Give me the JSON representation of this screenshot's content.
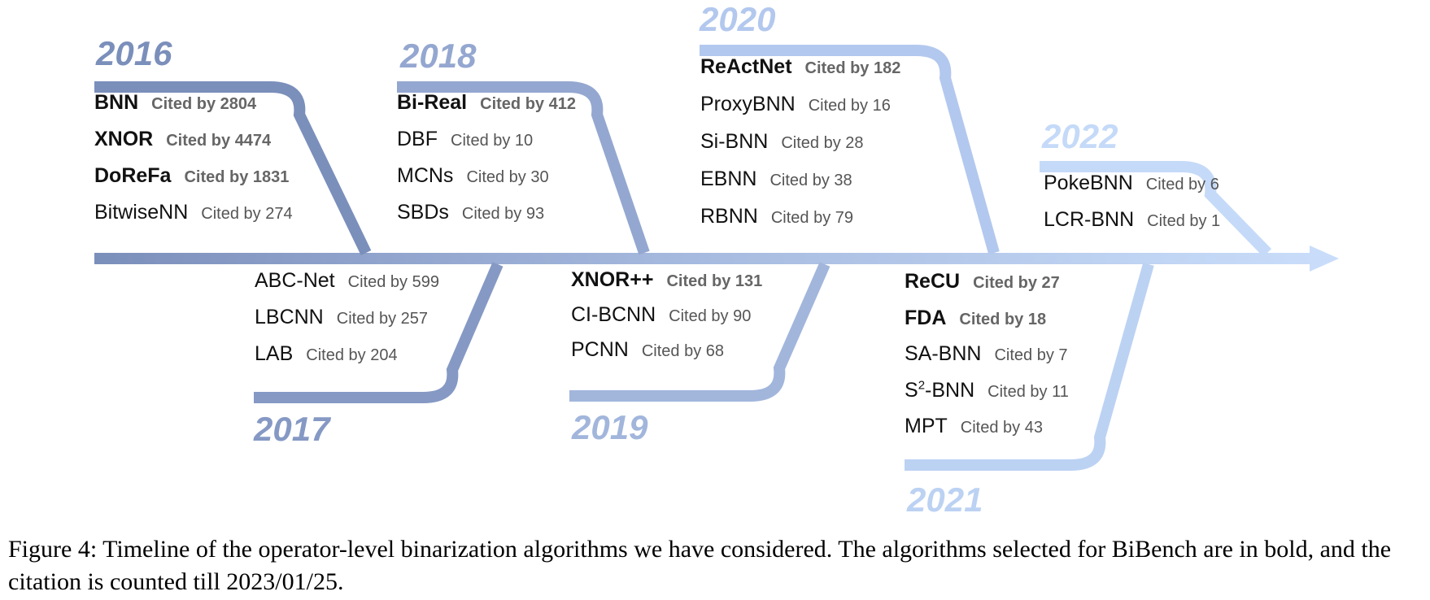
{
  "timeline": {
    "colors": {
      "y2016": "#7b8fbb",
      "y2017": "#8599c4",
      "y2018": "#94a7d0",
      "y2019": "#a2b6dc",
      "y2020": "#b3c8ee",
      "y2021": "#bcd2f3",
      "y2022": "#c5daf8",
      "text": "#111111",
      "cite": "#555555"
    },
    "years": [
      {
        "label": "2016",
        "entries": [
          {
            "name": "BNN",
            "cite": "Cited by 2804",
            "bold": true
          },
          {
            "name": "XNOR",
            "cite": "Cited by 4474",
            "bold": true
          },
          {
            "name": "DoReFa",
            "cite": "Cited by 1831",
            "bold": true
          },
          {
            "name": "BitwiseNN",
            "cite": "Cited by 274",
            "bold": false
          }
        ]
      },
      {
        "label": "2017",
        "entries": [
          {
            "name": "ABC-Net",
            "cite": "Cited by 599",
            "bold": false
          },
          {
            "name": "LBCNN",
            "cite": "Cited by 257",
            "bold": false
          },
          {
            "name": "LAB",
            "cite": "Cited by 204",
            "bold": false
          }
        ]
      },
      {
        "label": "2018",
        "entries": [
          {
            "name": "Bi-Real",
            "cite": "Cited by 412",
            "bold": true
          },
          {
            "name": "DBF",
            "cite": "Cited by 10",
            "bold": false
          },
          {
            "name": "MCNs",
            "cite": "Cited by 30",
            "bold": false
          },
          {
            "name": "SBDs",
            "cite": "Cited by 93",
            "bold": false
          }
        ]
      },
      {
        "label": "2019",
        "entries": [
          {
            "name": "XNOR++",
            "cite": "Cited by 131",
            "bold": true
          },
          {
            "name": "CI-BCNN",
            "cite": "Cited by 90",
            "bold": false
          },
          {
            "name": "PCNN",
            "cite": "Cited by 68",
            "bold": false
          }
        ]
      },
      {
        "label": "2020",
        "entries": [
          {
            "name": "ReActNet",
            "cite": "Cited by 182",
            "bold": true
          },
          {
            "name": "ProxyBNN",
            "cite": "Cited by 16",
            "bold": false
          },
          {
            "name": "Si-BNN",
            "cite": "Cited by 28",
            "bold": false
          },
          {
            "name": "EBNN",
            "cite": "Cited by 38",
            "bold": false
          },
          {
            "name": "RBNN",
            "cite": "Cited by 79",
            "bold": false
          }
        ]
      },
      {
        "label": "2021",
        "entries": [
          {
            "name": "ReCU",
            "cite": "Cited by 27",
            "bold": true
          },
          {
            "name": "FDA",
            "cite": "Cited by 18",
            "bold": true
          },
          {
            "name": "SA-BNN",
            "cite": "Cited by 7",
            "bold": false
          },
          {
            "name": "S",
            "sup": "2",
            "suffix": "-BNN",
            "cite": "Cited by 11",
            "bold": false
          },
          {
            "name": "MPT",
            "cite": "Cited by 43",
            "bold": false
          }
        ]
      },
      {
        "label": "2022",
        "entries": [
          {
            "name": "PokeBNN",
            "cite": "Cited by 6",
            "bold": false
          },
          {
            "name": "LCR-BNN",
            "cite": "Cited by 1",
            "bold": false
          }
        ]
      }
    ]
  },
  "caption": "Figure 4: Timeline of the operator-level binarization algorithms we have considered. The algorithms selected for BiBench are in bold, and the citation is counted till 2023/01/25."
}
